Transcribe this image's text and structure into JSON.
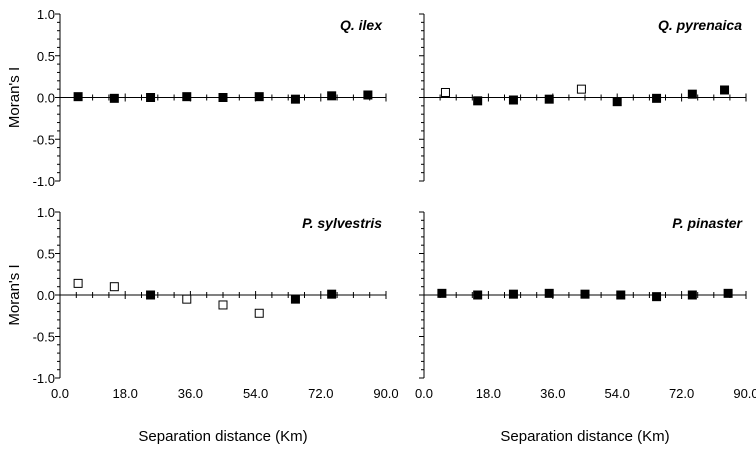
{
  "chart_data": [
    {
      "type": "scatter",
      "title": "Q. ilex",
      "xlabel": "",
      "ylabel": "Moran's I",
      "xlim": [
        0,
        90
      ],
      "ylim": [
        -1.0,
        1.0
      ],
      "x_ticks": [],
      "y_ticks": [
        "1.0",
        "0.5",
        "0.0",
        "-0.5",
        "-1.0"
      ],
      "grid": false,
      "series": [
        {
          "marker": "filled-square",
          "points": [
            {
              "x": 5,
              "y": 0.01
            },
            {
              "x": 15,
              "y": -0.01
            },
            {
              "x": 25,
              "y": 0.0
            },
            {
              "x": 35,
              "y": 0.01
            },
            {
              "x": 45,
              "y": 0.0
            },
            {
              "x": 55,
              "y": 0.01
            },
            {
              "x": 65,
              "y": -0.02
            },
            {
              "x": 75,
              "y": 0.02
            },
            {
              "x": 85,
              "y": 0.03
            }
          ]
        }
      ]
    },
    {
      "type": "scatter",
      "title": "Q. pyrenaica",
      "xlabel": "",
      "ylabel": "",
      "xlim": [
        0,
        90
      ],
      "ylim": [
        -1.0,
        1.0
      ],
      "x_ticks": [],
      "y_ticks": [],
      "grid": false,
      "series": [
        {
          "marker": "filled-square",
          "points": [
            {
              "x": 15,
              "y": -0.04
            },
            {
              "x": 25,
              "y": -0.03
            },
            {
              "x": 35,
              "y": -0.02
            },
            {
              "x": 54,
              "y": -0.05
            },
            {
              "x": 65,
              "y": -0.01
            },
            {
              "x": 75,
              "y": 0.04
            },
            {
              "x": 84,
              "y": 0.09
            }
          ]
        },
        {
          "marker": "open-square",
          "points": [
            {
              "x": 6,
              "y": 0.06
            },
            {
              "x": 44,
              "y": 0.1
            }
          ]
        }
      ]
    },
    {
      "type": "scatter",
      "title": "P. sylvestris",
      "xlabel": "Separation distance (Km)",
      "ylabel": "Moran's I",
      "xlim": [
        0,
        90
      ],
      "ylim": [
        -1.0,
        1.0
      ],
      "x_ticks": [
        "0.0",
        "18.0",
        "36.0",
        "54.0",
        "72.0",
        "90.0"
      ],
      "y_ticks": [
        "1.0",
        "0.5",
        "0.0",
        "-0.5",
        "-1.0"
      ],
      "grid": false,
      "series": [
        {
          "marker": "filled-square",
          "points": [
            {
              "x": 25,
              "y": 0.0
            },
            {
              "x": 65,
              "y": -0.05
            },
            {
              "x": 75,
              "y": 0.01
            }
          ]
        },
        {
          "marker": "open-square",
          "points": [
            {
              "x": 5,
              "y": 0.14
            },
            {
              "x": 15,
              "y": 0.1
            },
            {
              "x": 35,
              "y": -0.05
            },
            {
              "x": 45,
              "y": -0.12
            },
            {
              "x": 55,
              "y": -0.22
            }
          ]
        }
      ]
    },
    {
      "type": "scatter",
      "title": "P. pinaster",
      "xlabel": "Separation distance (Km)",
      "ylabel": "",
      "xlim": [
        0,
        90
      ],
      "ylim": [
        -1.0,
        1.0
      ],
      "x_ticks": [
        "0.0",
        "18.0",
        "36.0",
        "54.0",
        "72.0",
        "90.0"
      ],
      "y_ticks": [],
      "grid": false,
      "series": [
        {
          "marker": "filled-square",
          "points": [
            {
              "x": 5,
              "y": 0.02
            },
            {
              "x": 15,
              "y": 0.0
            },
            {
              "x": 25,
              "y": 0.01
            },
            {
              "x": 35,
              "y": 0.02
            },
            {
              "x": 45,
              "y": 0.01
            },
            {
              "x": 55,
              "y": 0.0
            },
            {
              "x": 65,
              "y": -0.02
            },
            {
              "x": 75,
              "y": 0.0
            },
            {
              "x": 85,
              "y": 0.02
            }
          ]
        }
      ]
    }
  ]
}
